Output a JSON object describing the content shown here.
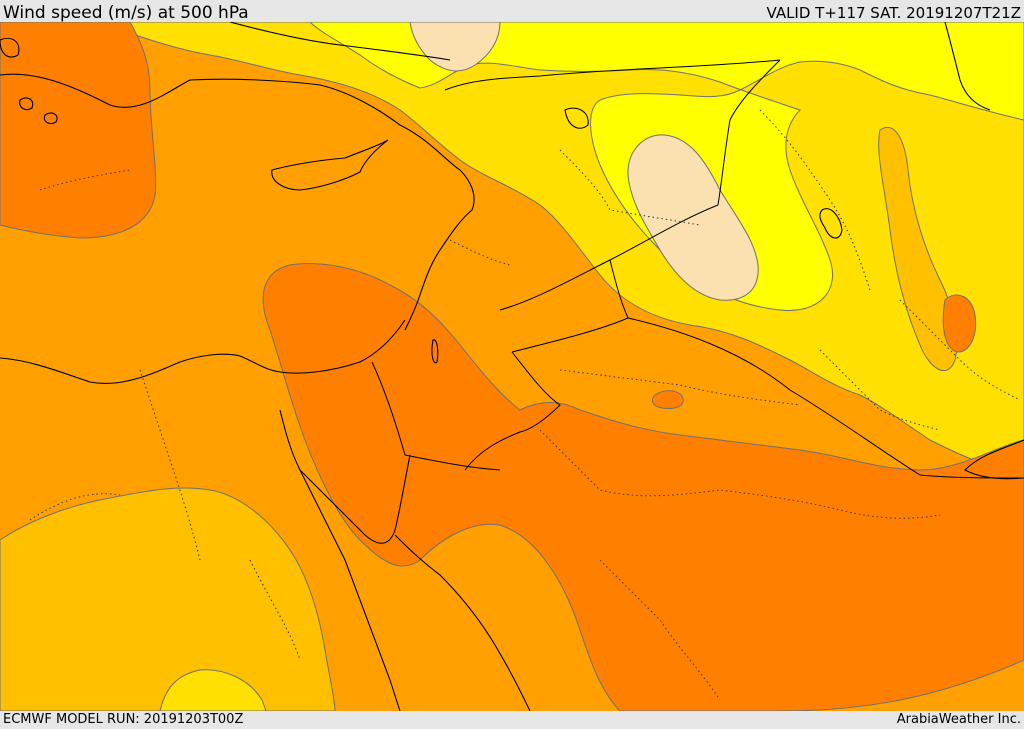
{
  "header": {
    "title": "Wind speed (m/s) at 500 hPa",
    "valid": "VALID T+117 SAT. 20191207T21Z"
  },
  "footer": {
    "model_run": "ECMWF MODEL RUN: 20191203T00Z",
    "credit": "ArabiaWeather Inc."
  },
  "map": {
    "colors": {
      "calmest": "#fbe0b0",
      "light": "#ffff00",
      "gold": "#ffe000",
      "amber": "#ffc000",
      "orange": "#ffa000",
      "deep_orange": "#ff8000",
      "contour_line": "#707070",
      "coastline": "#000000",
      "border_dotted": "#333333"
    }
  }
}
